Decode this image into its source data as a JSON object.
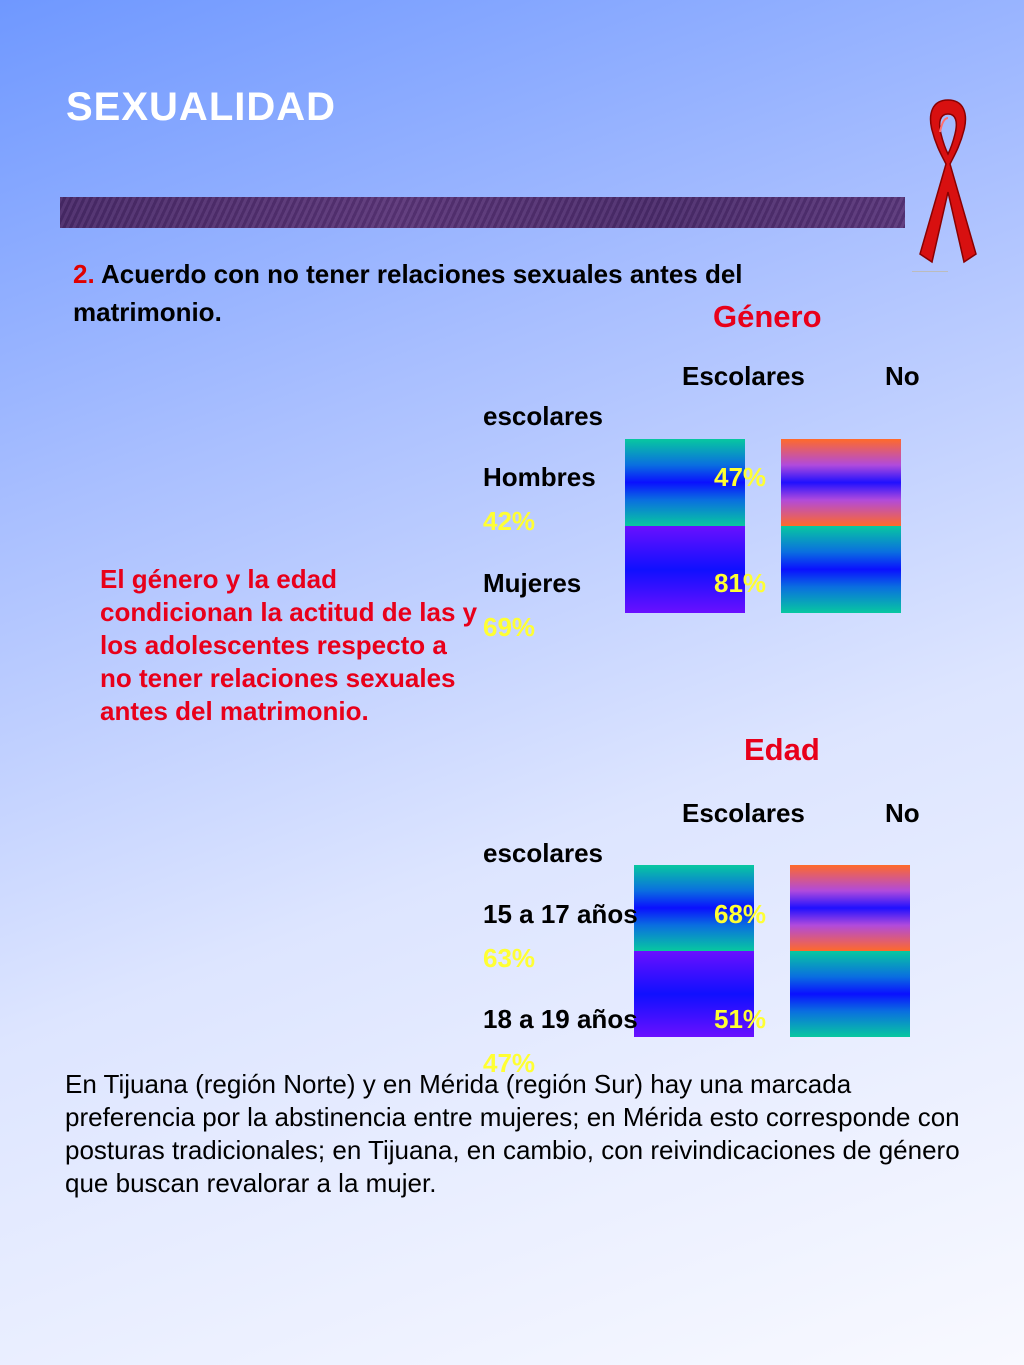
{
  "slide": {
    "title": "SEXUALIDAD",
    "question_number": "2.",
    "question_text": "Acuerdo con no tener relaciones sexuales antes del matrimonio.",
    "note": "El género y la edad condicionan la actitud de las y los adolescentes respecto a no tener relaciones sexuales antes del matrimonio.",
    "paragraph": "En Tijuana (región Norte) y en Mérida (región Sur) hay una marcada preferencia por la abstinencia entre mujeres; en Mérida esto corresponde con posturas tradicionales;  en Tijuana, en cambio, con reivindicaciones de género que buscan revalorar a la mujer."
  },
  "genero": {
    "heading": "Género",
    "col1": "Escolares",
    "col2_a": "No",
    "col2_b": "escolares",
    "rows": [
      {
        "label": "Hombres",
        "escolares": "47%",
        "no_escolares": "42%"
      },
      {
        "label": "Mujeres",
        "escolares": "81%",
        "no_escolares": "69%"
      }
    ]
  },
  "edad": {
    "heading": "Edad",
    "col1": "Escolares",
    "col2_a": "No",
    "col2_b": "escolares",
    "rows": [
      {
        "label": "15 a 17 años",
        "escolares": "68%",
        "no_escolares": "63%"
      },
      {
        "label": "18 a 19 años",
        "escolares": "51%",
        "no_escolares": "47%"
      }
    ]
  },
  "colors": {
    "title": "#ffffff",
    "accent_red": "#e8001a",
    "value_yellow": "#ffff33",
    "band": "#4a2a6a",
    "ribbon": "#d81010"
  },
  "icons": {
    "ribbon": "awareness-ribbon-icon"
  }
}
